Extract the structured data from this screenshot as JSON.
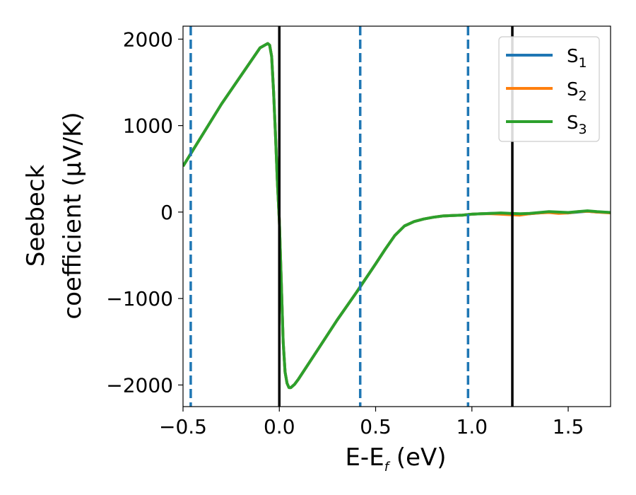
{
  "chart_data": {
    "type": "line",
    "xlabel": "E-E",
    "xlabel_sub": "f",
    "xlabel_unit": " (eV)",
    "ylabel_line1": "Seebeck",
    "ylabel_line2": "coefficient  (μV/K)",
    "xlim": [
      -0.5,
      1.72
    ],
    "ylim": [
      -2250,
      2150
    ],
    "xticks": [
      -0.5,
      0.0,
      0.5,
      1.0,
      1.5
    ],
    "xtick_labels": [
      "−0.5",
      "0.0",
      "0.5",
      "1.0",
      "1.5"
    ],
    "yticks": [
      -2000,
      -1000,
      0,
      1000,
      2000
    ],
    "ytick_labels": [
      "−2000",
      "−1000",
      "0",
      "1000",
      "2000"
    ],
    "vlines_solid": [
      0.0,
      1.21
    ],
    "vlines_dashed": [
      -0.46,
      0.42,
      0.98
    ],
    "legend_position": "top-right",
    "colors": {
      "S1": "#1f77b4",
      "S2": "#ff7f0e",
      "S3": "#2ca02c",
      "solid_vline": "#000000",
      "dashed_vline": "#1f77b4"
    },
    "series": [
      {
        "name": "S1",
        "label_main": "S",
        "label_sub": "1",
        "color": "#1f77b4",
        "x": [
          -0.5,
          -0.3,
          -0.1,
          -0.06,
          -0.05,
          -0.04,
          -0.03,
          -0.02,
          -0.01,
          0.0,
          0.01,
          0.02,
          0.03,
          0.04,
          0.05,
          0.06,
          0.08,
          0.1,
          0.2,
          0.3,
          0.4,
          0.5,
          0.55,
          0.6,
          0.65,
          0.7,
          0.75,
          0.8,
          0.85,
          0.9,
          0.95,
          1.0,
          1.05,
          1.1,
          1.15,
          1.2,
          1.25,
          1.3,
          1.35,
          1.4,
          1.45,
          1.5,
          1.55,
          1.6,
          1.65,
          1.72
        ],
        "y": [
          530,
          1250,
          1900,
          1950,
          1930,
          1800,
          1400,
          900,
          350,
          -100,
          -800,
          -1500,
          -1850,
          -1980,
          -2030,
          -2030,
          -1990,
          -1930,
          -1590,
          -1250,
          -930,
          -600,
          -430,
          -270,
          -160,
          -110,
          -80,
          -60,
          -45,
          -40,
          -35,
          -25,
          -20,
          -15,
          -15,
          -20,
          -25,
          -20,
          -10,
          0,
          -5,
          -10,
          0,
          10,
          0,
          -5
        ]
      },
      {
        "name": "S2",
        "label_main": "S",
        "label_sub": "2",
        "color": "#ff7f0e",
        "x": [
          -0.5,
          -0.3,
          -0.1,
          -0.06,
          -0.05,
          -0.04,
          -0.03,
          -0.02,
          -0.01,
          0.0,
          0.01,
          0.02,
          0.03,
          0.04,
          0.05,
          0.06,
          0.08,
          0.1,
          0.2,
          0.3,
          0.4,
          0.5,
          0.55,
          0.6,
          0.65,
          0.7,
          0.75,
          0.8,
          0.85,
          0.9,
          0.95,
          1.0,
          1.05,
          1.1,
          1.15,
          1.2,
          1.25,
          1.3,
          1.35,
          1.4,
          1.45,
          1.5,
          1.55,
          1.6,
          1.65,
          1.72
        ],
        "y": [
          530,
          1250,
          1900,
          1950,
          1930,
          1800,
          1400,
          900,
          350,
          -100,
          -800,
          -1500,
          -1850,
          -1980,
          -2030,
          -2030,
          -1990,
          -1930,
          -1590,
          -1250,
          -930,
          -600,
          -430,
          -270,
          -160,
          -110,
          -80,
          -60,
          -45,
          -40,
          -35,
          -25,
          -20,
          -20,
          -25,
          -30,
          -35,
          -20,
          -10,
          -5,
          -15,
          -10,
          5,
          10,
          0,
          -10
        ]
      },
      {
        "name": "S3",
        "label_main": "S",
        "label_sub": "3",
        "color": "#2ca02c",
        "x": [
          -0.5,
          -0.3,
          -0.1,
          -0.06,
          -0.05,
          -0.04,
          -0.03,
          -0.02,
          -0.01,
          0.0,
          0.01,
          0.02,
          0.03,
          0.04,
          0.05,
          0.06,
          0.08,
          0.1,
          0.2,
          0.3,
          0.4,
          0.5,
          0.55,
          0.6,
          0.65,
          0.7,
          0.75,
          0.8,
          0.85,
          0.9,
          0.95,
          1.0,
          1.05,
          1.1,
          1.15,
          1.2,
          1.25,
          1.3,
          1.35,
          1.4,
          1.45,
          1.5,
          1.55,
          1.6,
          1.65,
          1.72
        ],
        "y": [
          530,
          1250,
          1900,
          1950,
          1930,
          1800,
          1400,
          900,
          350,
          -100,
          -800,
          -1500,
          -1850,
          -1980,
          -2030,
          -2030,
          -1990,
          -1930,
          -1590,
          -1250,
          -930,
          -600,
          -430,
          -270,
          -160,
          -110,
          -80,
          -60,
          -45,
          -40,
          -35,
          -25,
          -20,
          -15,
          -10,
          -15,
          -20,
          -15,
          -5,
          5,
          0,
          -5,
          5,
          15,
          5,
          -5
        ]
      }
    ]
  }
}
